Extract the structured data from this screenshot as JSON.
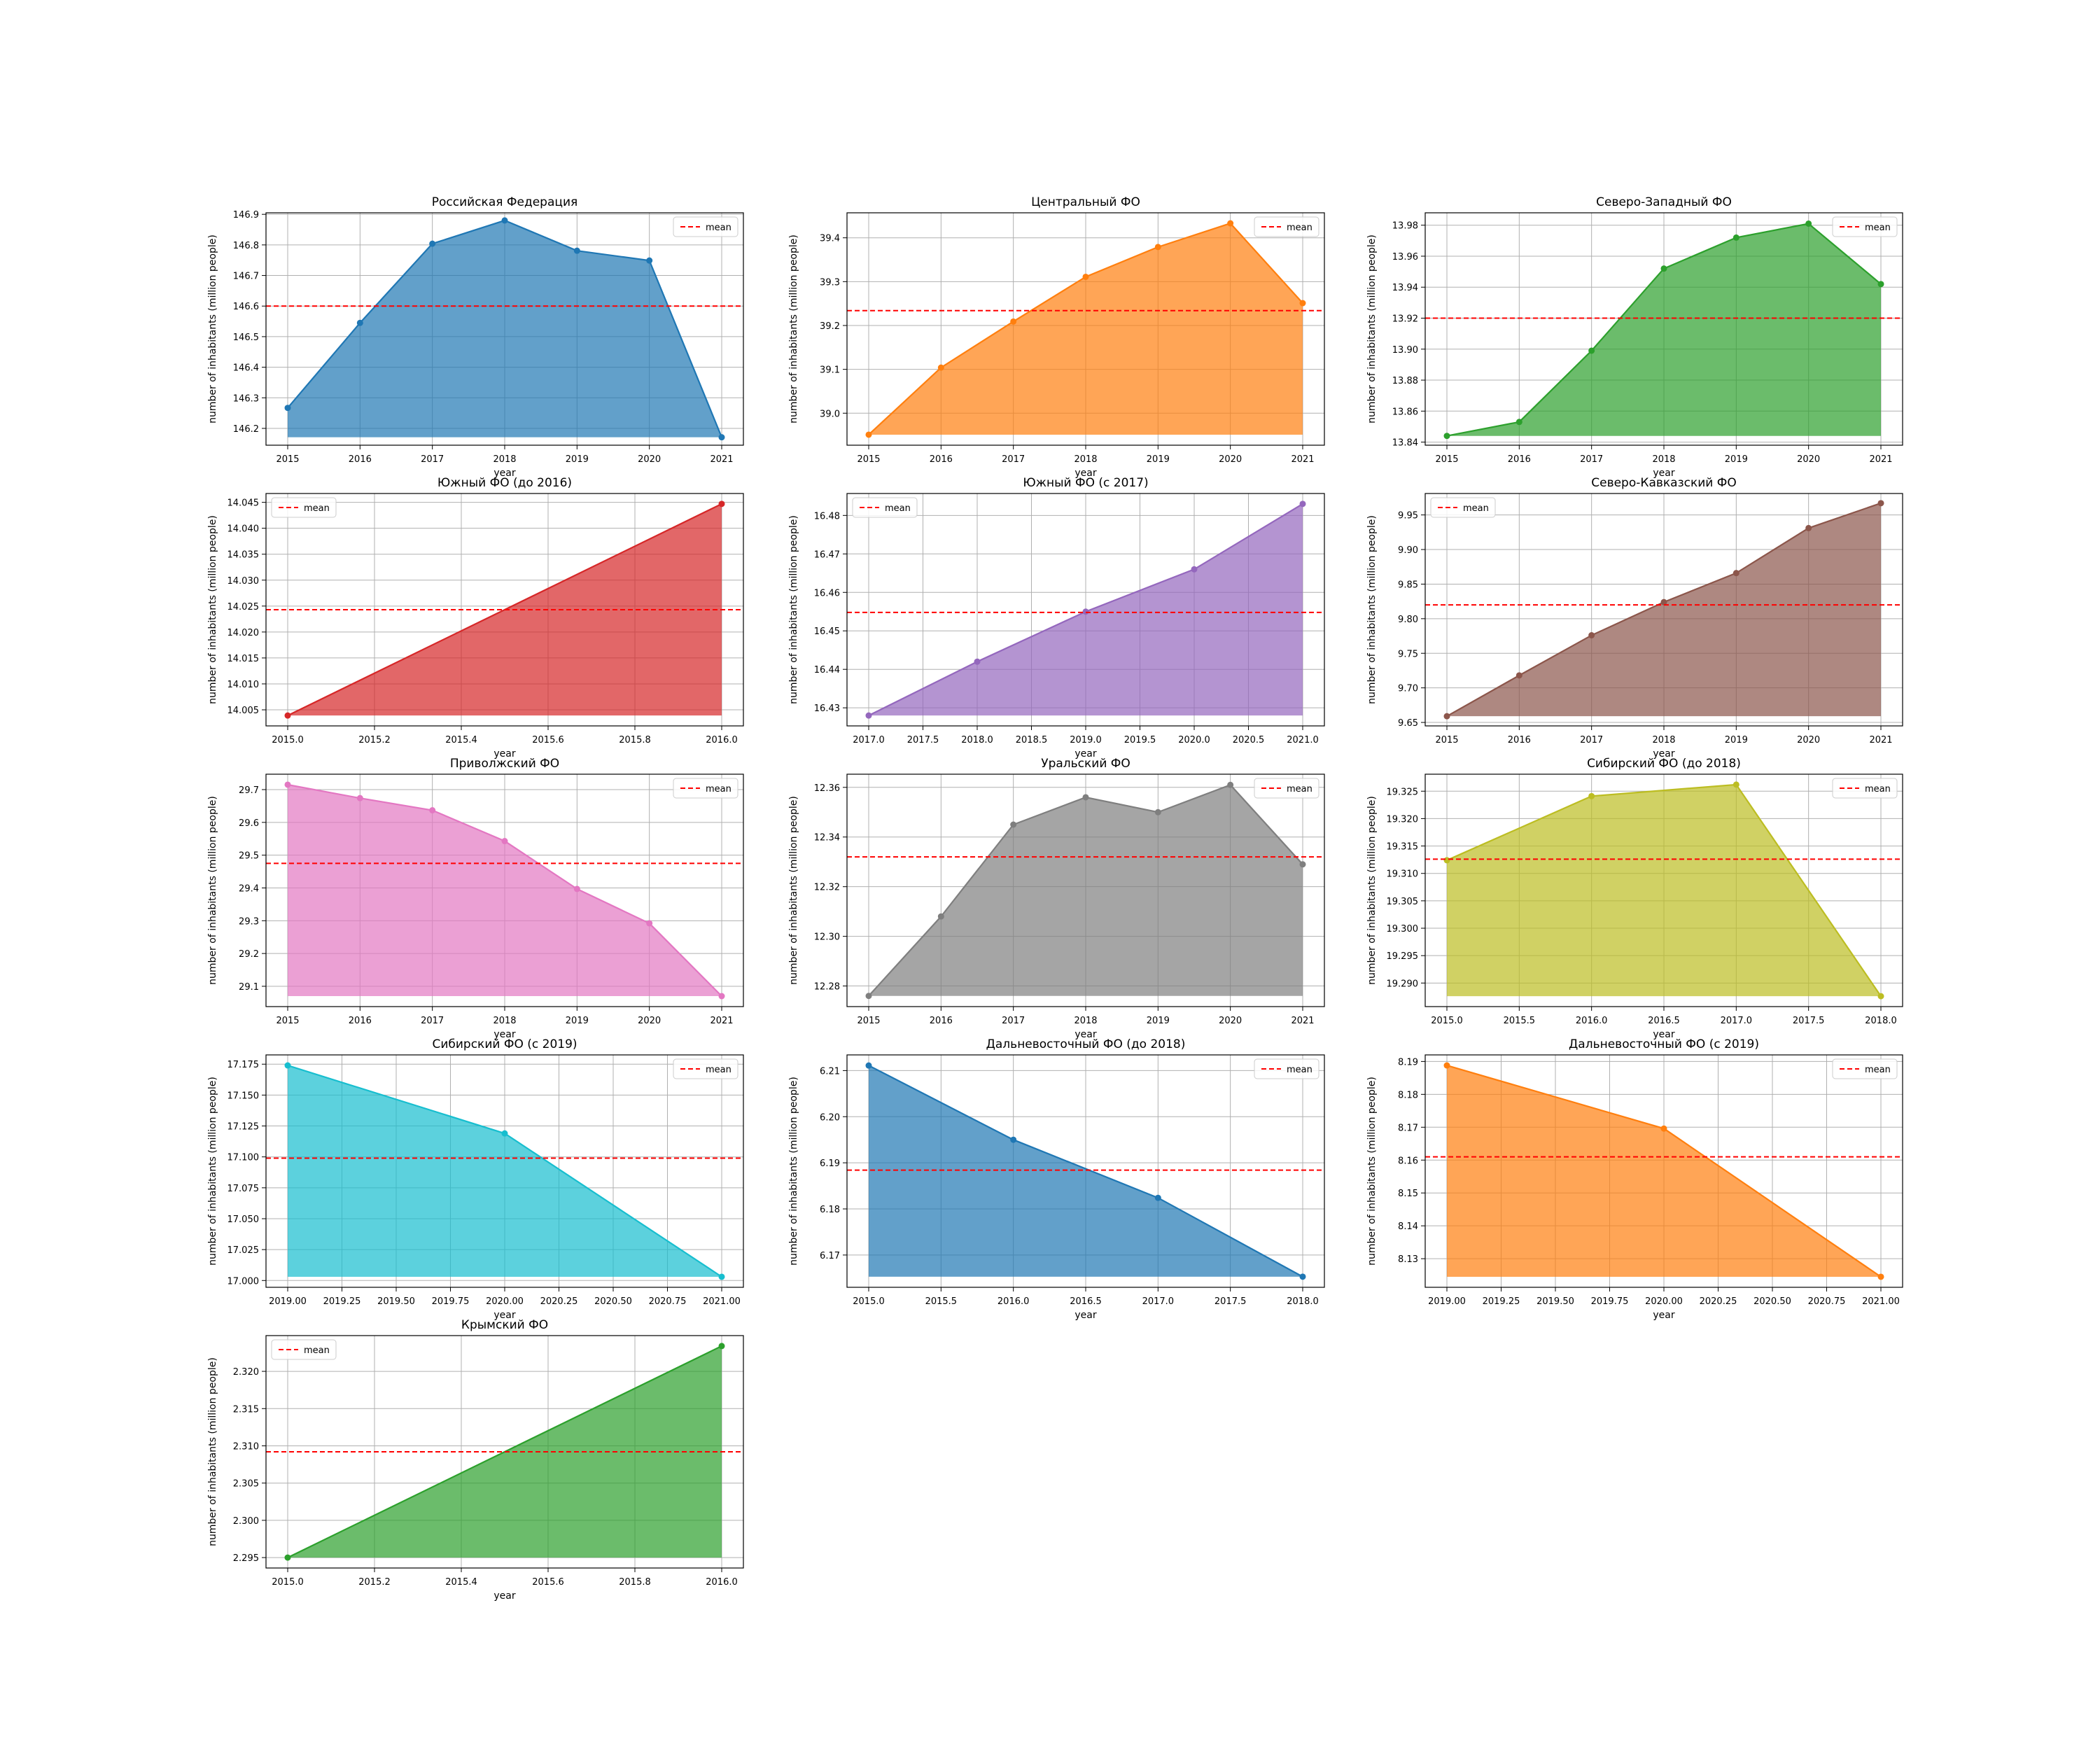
{
  "figure": {
    "mean_label": "mean",
    "mean_color": "#ff0000",
    "grid_color": "#b0b0b0"
  },
  "chart_data": [
    {
      "type": "area",
      "title": "Российская Федерация",
      "xlabel": "year",
      "ylabel": "number of inhabitants (million people)",
      "color": "#1f77b4",
      "x": [
        2015,
        2016,
        2017,
        2018,
        2019,
        2020,
        2021
      ],
      "values": [
        146.267,
        146.545,
        146.804,
        146.88,
        146.781,
        146.749,
        146.171
      ],
      "mean": 146.6,
      "xlim": [
        2014.7,
        2021.3
      ],
      "ylim": [
        146.145,
        146.905
      ],
      "xticks": [
        "2015",
        "2016",
        "2017",
        "2018",
        "2019",
        "2020",
        "2021"
      ],
      "yticks": [
        "146.2",
        "146.3",
        "146.4",
        "146.5",
        "146.6",
        "146.7",
        "146.8",
        "146.9"
      ],
      "legend": "top-right",
      "grid": true
    },
    {
      "type": "area",
      "title": "Центральный ФО",
      "xlabel": "year",
      "ylabel": "number of inhabitants (million people)",
      "color": "#ff7f0e",
      "x": [
        2015,
        2016,
        2017,
        2018,
        2019,
        2020,
        2021
      ],
      "values": [
        38.951,
        39.104,
        39.209,
        39.311,
        39.379,
        39.433,
        39.251
      ],
      "mean": 39.234,
      "xlim": [
        2014.7,
        2021.3
      ],
      "ylim": [
        38.927,
        39.457
      ],
      "xticks": [
        "2015",
        "2016",
        "2017",
        "2018",
        "2019",
        "2020",
        "2021"
      ],
      "yticks": [
        "39.0",
        "39.1",
        "39.2",
        "39.3",
        "39.4"
      ],
      "legend": "top-right",
      "grid": true
    },
    {
      "type": "area",
      "title": "Северо-Западный ФО",
      "xlabel": "year",
      "ylabel": "number of inhabitants (million people)",
      "color": "#2ca02c",
      "x": [
        2015,
        2016,
        2017,
        2018,
        2019,
        2020,
        2021
      ],
      "values": [
        13.844,
        13.853,
        13.899,
        13.952,
        13.972,
        13.981,
        13.942
      ],
      "mean": 13.92,
      "xlim": [
        2014.7,
        2021.3
      ],
      "ylim": [
        13.838,
        13.988
      ],
      "xticks": [
        "2015",
        "2016",
        "2017",
        "2018",
        "2019",
        "2020",
        "2021"
      ],
      "yticks": [
        "13.84",
        "13.86",
        "13.88",
        "13.90",
        "13.92",
        "13.94",
        "13.96",
        "13.98"
      ],
      "legend": "top-right",
      "grid": true
    },
    {
      "type": "area",
      "title": "Южный ФО (до 2016)",
      "xlabel": "year",
      "ylabel": "number of inhabitants (million people)",
      "color": "#d62728",
      "x": [
        2015,
        2016
      ],
      "values": [
        14.0039,
        14.0447
      ],
      "mean": 14.0243,
      "xlim": [
        2014.95,
        2016.05
      ],
      "ylim": [
        14.0019,
        14.0467
      ],
      "xticks": [
        "2015.0",
        "2015.2",
        "2015.4",
        "2015.6",
        "2015.8",
        "2016.0"
      ],
      "yticks": [
        "14.005",
        "14.010",
        "14.015",
        "14.020",
        "14.025",
        "14.030",
        "14.035",
        "14.040",
        "14.045"
      ],
      "legend": "top-left",
      "grid": true
    },
    {
      "type": "area",
      "title": "Южный ФО (с 2017)",
      "xlabel": "year",
      "ylabel": "number of inhabitants (million people)",
      "color": "#9467bd",
      "x": [
        2017,
        2018,
        2019,
        2020,
        2021
      ],
      "values": [
        16.428,
        16.442,
        16.455,
        16.466,
        16.483
      ],
      "mean": 16.4548,
      "xlim": [
        2016.8,
        2021.2
      ],
      "ylim": [
        16.4253,
        16.4857
      ],
      "xticks": [
        "2017.0",
        "2017.5",
        "2018.0",
        "2018.5",
        "2019.0",
        "2019.5",
        "2020.0",
        "2020.5",
        "2021.0"
      ],
      "yticks": [
        "16.43",
        "16.44",
        "16.45",
        "16.46",
        "16.47",
        "16.48"
      ],
      "legend": "top-left",
      "grid": true
    },
    {
      "type": "area",
      "title": "Северо-Кавказский ФО",
      "xlabel": "year",
      "ylabel": "number of inhabitants (million people)",
      "color": "#8c564b",
      "x": [
        2015,
        2016,
        2017,
        2018,
        2019,
        2020,
        2021
      ],
      "values": [
        9.659,
        9.718,
        9.776,
        9.824,
        9.866,
        9.931,
        9.967
      ],
      "mean": 9.82,
      "xlim": [
        2014.7,
        2021.3
      ],
      "ylim": [
        9.645,
        9.981
      ],
      "xticks": [
        "2015",
        "2016",
        "2017",
        "2018",
        "2019",
        "2020",
        "2021"
      ],
      "yticks": [
        "9.65",
        "9.70",
        "9.75",
        "9.80",
        "9.85",
        "9.90",
        "9.95"
      ],
      "legend": "top-left",
      "grid": true
    },
    {
      "type": "area",
      "title": "Приволжский ФО",
      "xlabel": "year",
      "ylabel": "number of inhabitants (million people)",
      "color": "#e377c2",
      "x": [
        2015,
        2016,
        2017,
        2018,
        2019,
        2020,
        2021
      ],
      "values": [
        29.715,
        29.674,
        29.637,
        29.543,
        29.397,
        29.292,
        29.07
      ],
      "mean": 29.475,
      "xlim": [
        2014.7,
        2021.3
      ],
      "ylim": [
        29.038,
        29.747
      ],
      "xticks": [
        "2015",
        "2016",
        "2017",
        "2018",
        "2019",
        "2020",
        "2021"
      ],
      "yticks": [
        "29.1",
        "29.2",
        "29.3",
        "29.4",
        "29.5",
        "29.6",
        "29.7"
      ],
      "legend": "top-right",
      "grid": true
    },
    {
      "type": "area",
      "title": "Уральский ФО",
      "xlabel": "year",
      "ylabel": "number of inhabitants (million people)",
      "color": "#7f7f7f",
      "x": [
        2015,
        2016,
        2017,
        2018,
        2019,
        2020,
        2021
      ],
      "values": [
        12.276,
        12.308,
        12.345,
        12.356,
        12.35,
        12.361,
        12.329
      ],
      "mean": 12.332,
      "xlim": [
        2014.7,
        2021.3
      ],
      "ylim": [
        12.2717,
        12.3653
      ],
      "xticks": [
        "2015",
        "2016",
        "2017",
        "2018",
        "2019",
        "2020",
        "2021"
      ],
      "yticks": [
        "12.28",
        "12.30",
        "12.32",
        "12.34",
        "12.36"
      ],
      "legend": "top-right",
      "grid": true
    },
    {
      "type": "area",
      "title": "Сибирский ФО (до 2018)",
      "xlabel": "year",
      "ylabel": "number of inhabitants (million people)",
      "color": "#bcbd22",
      "x": [
        2015,
        2016,
        2017,
        2018
      ],
      "values": [
        19.3124,
        19.3241,
        19.3262,
        19.2876
      ],
      "mean": 19.3126,
      "xlim": [
        2014.85,
        2018.15
      ],
      "ylim": [
        19.2857,
        19.3281
      ],
      "xticks": [
        "2015.0",
        "2015.5",
        "2016.0",
        "2016.5",
        "2017.0",
        "2017.5",
        "2018.0"
      ],
      "yticks": [
        "19.290",
        "19.295",
        "19.300",
        "19.305",
        "19.310",
        "19.315",
        "19.320",
        "19.325"
      ],
      "legend": "top-right",
      "grid": true
    },
    {
      "type": "area",
      "title": "Сибирский ФО (с 2019)",
      "xlabel": "year",
      "ylabel": "number of inhabitants (million people)",
      "color": "#17becf",
      "x": [
        2019,
        2020,
        2021
      ],
      "values": [
        17.174,
        17.119,
        17.003
      ],
      "mean": 17.099,
      "xlim": [
        2018.9,
        2021.1
      ],
      "ylim": [
        16.9945,
        17.1825
      ],
      "xticks": [
        "2019.00",
        "2019.25",
        "2019.50",
        "2019.75",
        "2020.00",
        "2020.25",
        "2020.50",
        "2020.75",
        "2021.00"
      ],
      "yticks": [
        "17.000",
        "17.025",
        "17.050",
        "17.075",
        "17.100",
        "17.125",
        "17.150",
        "17.175"
      ],
      "legend": "top-right",
      "grid": true
    },
    {
      "type": "area",
      "title": "Дальневосточный ФО (до 2018)",
      "xlabel": "year",
      "ylabel": "number of inhabitants (million people)",
      "color": "#1f77b4",
      "x": [
        2015,
        2016,
        2017,
        2018
      ],
      "values": [
        6.2111,
        6.195,
        6.1824,
        6.1653
      ],
      "mean": 6.1884,
      "xlim": [
        2014.85,
        2018.15
      ],
      "ylim": [
        6.163,
        6.2134
      ],
      "xticks": [
        "2015.0",
        "2015.5",
        "2016.0",
        "2016.5",
        "2017.0",
        "2017.5",
        "2018.0"
      ],
      "yticks": [
        "6.17",
        "6.18",
        "6.19",
        "6.20",
        "6.21"
      ],
      "legend": "top-right",
      "grid": true
    },
    {
      "type": "area",
      "title": "Дальневосточный ФО (с 2019)",
      "xlabel": "year",
      "ylabel": "number of inhabitants (million people)",
      "color": "#ff7f0e",
      "x": [
        2019,
        2020,
        2021
      ],
      "values": [
        8.1888,
        8.1696,
        8.1245
      ],
      "mean": 8.161,
      "xlim": [
        2018.9,
        2021.1
      ],
      "ylim": [
        8.1213,
        8.192
      ],
      "xticks": [
        "2019.00",
        "2019.25",
        "2019.50",
        "2019.75",
        "2020.00",
        "2020.25",
        "2020.50",
        "2020.75",
        "2021.00"
      ],
      "yticks": [
        "8.13",
        "8.14",
        "8.15",
        "8.16",
        "8.17",
        "8.18",
        "8.19"
      ],
      "legend": "top-right",
      "grid": true
    },
    {
      "type": "area",
      "title": "Крымский ФО",
      "xlabel": "year",
      "ylabel": "number of inhabitants (million people)",
      "color": "#2ca02c",
      "x": [
        2015,
        2016
      ],
      "values": [
        2.295,
        2.3234
      ],
      "mean": 2.3092,
      "xlim": [
        2014.95,
        2016.05
      ],
      "ylim": [
        2.2936,
        2.3248
      ],
      "xticks": [
        "2015.0",
        "2015.2",
        "2015.4",
        "2015.6",
        "2015.8",
        "2016.0"
      ],
      "yticks": [
        "2.295",
        "2.300",
        "2.305",
        "2.310",
        "2.315",
        "2.320"
      ],
      "legend": "top-left",
      "grid": true
    }
  ]
}
